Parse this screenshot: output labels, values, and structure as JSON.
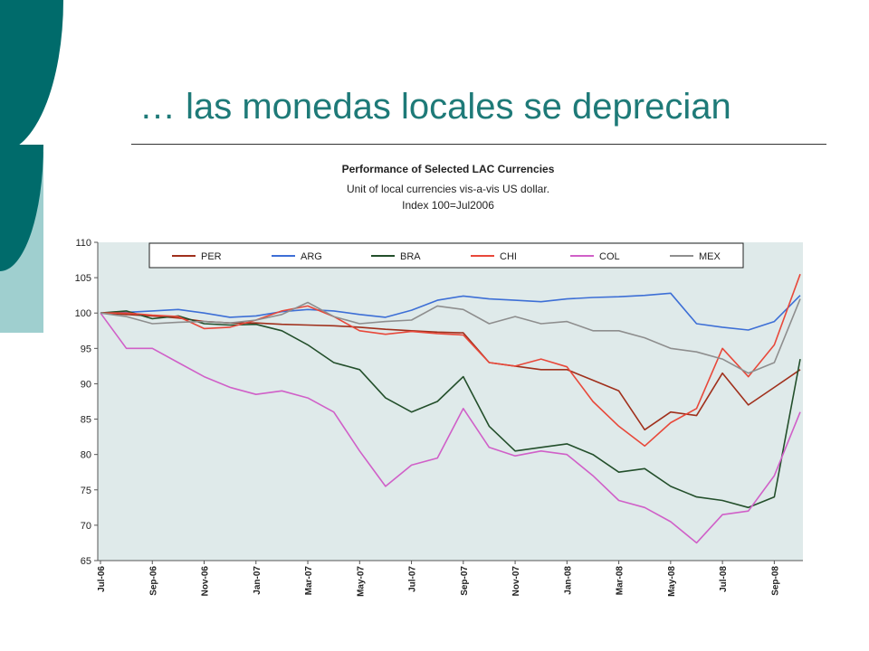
{
  "slide": {
    "title": "… las monedas locales se deprecian"
  },
  "colors": {
    "accent_dark": "#006b6b",
    "accent_light": "#9fcfcf",
    "title": "#1e7a78",
    "plot_bg": "#dfeaea"
  },
  "chart_data": {
    "type": "line",
    "title": "Performance of Selected LAC Currencies",
    "subtitle_lines": [
      "Unit of local currencies vis-a-vis US dollar.",
      "Index 100=Jul2006"
    ],
    "x": [
      "Jul-06",
      "Aug-06",
      "Sep-06",
      "Oct-06",
      "Nov-06",
      "Dec-06",
      "Jan-07",
      "Feb-07",
      "Mar-07",
      "Apr-07",
      "May-07",
      "Jun-07",
      "Jul-07",
      "Aug-07",
      "Sep-07",
      "Oct-07",
      "Nov-07",
      "Dec-07",
      "Jan-08",
      "Feb-08",
      "Mar-08",
      "Apr-08",
      "May-08",
      "Jun-08",
      "Jul-08",
      "Aug-08",
      "Sep-08",
      "Oct-08"
    ],
    "x_tick_labels": [
      "Jul-06",
      "Sep-06",
      "Nov-06",
      "Jan-07",
      "Mar-07",
      "May-07",
      "Jul-07",
      "Sep-07",
      "Nov-07",
      "Jan-08",
      "Mar-08",
      "May-08",
      "Jul-08",
      "Sep-08"
    ],
    "y_ticks": [
      "110",
      "105",
      "100",
      "95",
      "90",
      "85",
      "80",
      "75",
      "70",
      "65"
    ],
    "ylim": [
      65,
      110
    ],
    "grid": false,
    "legend_position": "top",
    "series": [
      {
        "name": "PER",
        "color": "#a0301c",
        "values": [
          100,
          99.8,
          99.6,
          99.3,
          98.8,
          98.6,
          98.6,
          98.4,
          98.3,
          98.2,
          98,
          97.7,
          97.5,
          97.3,
          97.2,
          93,
          92.5,
          92,
          92,
          90.5,
          89,
          83.5,
          86,
          85.5,
          91.5,
          87,
          89.5,
          92
        ]
      },
      {
        "name": "ARG",
        "color": "#3d6fd6",
        "values": [
          100,
          100.1,
          100.3,
          100.5,
          100,
          99.4,
          99.6,
          100.2,
          100.5,
          100.3,
          99.8,
          99.4,
          100.4,
          101.8,
          102.4,
          102,
          101.8,
          101.6,
          102,
          102.2,
          102.3,
          102.5,
          102.8,
          98.5,
          98,
          97.6,
          98.8,
          102.5
        ]
      },
      {
        "name": "BRA",
        "color": "#234f2b",
        "values": [
          100,
          100.3,
          99.2,
          99.6,
          98.5,
          98.3,
          98.4,
          97.5,
          95.5,
          93,
          92,
          88,
          86,
          87.5,
          91,
          84,
          80.5,
          81,
          81.5,
          80,
          77.5,
          78,
          75.5,
          74,
          73.5,
          72.5,
          74,
          93.5
        ]
      },
      {
        "name": "CHI",
        "color": "#e8483a",
        "values": [
          100,
          100,
          99.7,
          99.5,
          97.8,
          98,
          99,
          100.3,
          101,
          99.5,
          97.5,
          97,
          97.4,
          97.1,
          96.9,
          93,
          92.5,
          93.5,
          92.4,
          87.5,
          84,
          81.2,
          84.5,
          86.5,
          95,
          91,
          95.5,
          105.5
        ]
      },
      {
        "name": "COL",
        "color": "#d060c8",
        "values": [
          100,
          95,
          95,
          93,
          91,
          89.5,
          88.5,
          89,
          88,
          86,
          80.5,
          75.5,
          78.5,
          79.5,
          86.5,
          81,
          79.8,
          80.5,
          80,
          77,
          73.5,
          72.5,
          70.5,
          67.5,
          71.5,
          72,
          77,
          86
        ]
      },
      {
        "name": "MEX",
        "color": "#8e8e8e",
        "values": [
          100,
          99.5,
          98.5,
          98.7,
          98.8,
          98.6,
          99,
          99.8,
          101.5,
          99.5,
          98.5,
          98.8,
          99,
          101,
          100.5,
          98.5,
          99.5,
          98.5,
          98.8,
          97.5,
          97.5,
          96.5,
          95,
          94.5,
          93.5,
          91.5,
          93,
          102
        ]
      }
    ]
  }
}
